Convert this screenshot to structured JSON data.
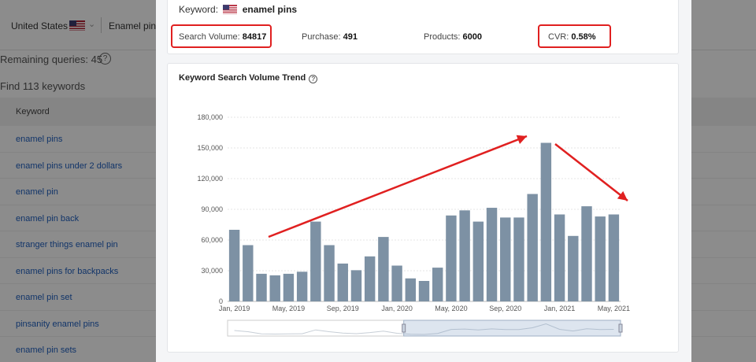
{
  "background": {
    "country": "United States",
    "keyword_tab": "Enamel pins",
    "remaining_queries": "Remaining queries: 45",
    "found": "Find 113 keywords",
    "column_keyword": "Keyword",
    "rows": [
      "enamel pins",
      "enamel pins under 2 dollars",
      "enamel pin",
      "enamel pin back",
      "stranger things enamel pin",
      "enamel pins for backpacks",
      "enamel pin set",
      "pinsanity enamel pins",
      "enamel pin sets"
    ]
  },
  "summary": {
    "keyword_label": "Keyword:",
    "keyword": "enamel pins",
    "search_volume_label": "Search Volume:",
    "search_volume": "84817",
    "purchase_label": "Purchase:",
    "purchase": "491",
    "products_label": "Products:",
    "products": "6000",
    "cvr_label": "CVR:",
    "cvr": "0.58%"
  },
  "chart_title": "Keyword Search Volume Trend",
  "colors": {
    "bar": "#7d91a4",
    "annotation": "#e02020",
    "flag_red": "#b22234",
    "flag_blue": "#3c3b6e"
  },
  "chart_data": {
    "type": "bar",
    "title": "Keyword Search Volume Trend",
    "categories": [
      "Jan, 2019",
      "Feb, 2019",
      "Mar, 2019",
      "Apr, 2019",
      "May, 2019",
      "Jun, 2019",
      "Jul, 2019",
      "Aug, 2019",
      "Sep, 2019",
      "Oct, 2019",
      "Nov, 2019",
      "Dec, 2019",
      "Jan, 2020",
      "Feb, 2020",
      "Mar, 2020",
      "Apr, 2020",
      "May, 2020",
      "Jun, 2020",
      "Jul, 2020",
      "Aug, 2020",
      "Sep, 2020",
      "Oct, 2020",
      "Nov, 2020",
      "Dec, 2020",
      "Jan, 2021",
      "Feb, 2021",
      "Mar, 2021",
      "Apr, 2021",
      "May, 2021"
    ],
    "values": [
      70000,
      55000,
      27000,
      25500,
      27000,
      29000,
      78000,
      55000,
      37000,
      30500,
      44000,
      63000,
      35000,
      22500,
      20000,
      33000,
      84000,
      89000,
      78000,
      91500,
      82000,
      82000,
      105000,
      155000,
      85000,
      64000,
      93000,
      83000,
      85000
    ],
    "x_tick_labels": [
      "Jan, 2019",
      "May, 2019",
      "Sep, 2019",
      "Jan, 2020",
      "May, 2020",
      "Sep, 2020",
      "Jan, 2021",
      "May, 2021"
    ],
    "y_tick_labels": [
      "0",
      "30,000",
      "60,000",
      "90,000",
      "120,000",
      "150,000",
      "180,000"
    ],
    "ylim": [
      0,
      180000
    ],
    "grid": true
  }
}
